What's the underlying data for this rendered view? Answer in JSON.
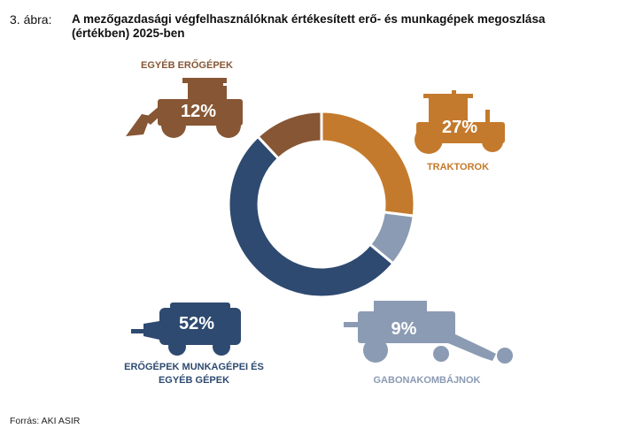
{
  "figure": {
    "number": "3. ábra:",
    "title": "A mezőgazdasági végfelhasználóknak értékesített erő- és munkagépek megoszlása (értékben) 2025-ben",
    "source": "Forrás: AKI ASIR"
  },
  "chart_data": {
    "type": "pie",
    "donut": true,
    "title": "A mezőgazdasági végfelhasználóknak értékesített erő- és munkagépek megoszlása (értékben) 2025-ben",
    "unit": "%",
    "slices": [
      {
        "name": "TRAKTOROK",
        "lines": [
          "TRAKTOROK"
        ],
        "value": 27,
        "label": "27%",
        "color": "#c47a2c",
        "icon": "tractor-icon"
      },
      {
        "name": "GABONAKOMBÁJNOK",
        "lines": [
          "GABONAKOMBÁJNOK"
        ],
        "value": 9,
        "label": "9%",
        "color": "#8b9bb3",
        "icon": "combine-harvester-icon"
      },
      {
        "name": "ERŐGÉPEK MUNKAGÉPEI ÉS EGYÉB GÉPEK",
        "lines": [
          "ERŐGÉPEK MUNKAGÉPEI ÉS",
          "EGYÉB GÉPEK"
        ],
        "value": 52,
        "label": "52%",
        "color": "#2e4a70",
        "icon": "baler-icon"
      },
      {
        "name": "EGYÉB ERŐGÉPEK",
        "lines": [
          "EGYÉB ERŐGÉPEK"
        ],
        "value": 12,
        "label": "12%",
        "color": "#875634",
        "icon": "wheel-loader-icon"
      }
    ]
  }
}
